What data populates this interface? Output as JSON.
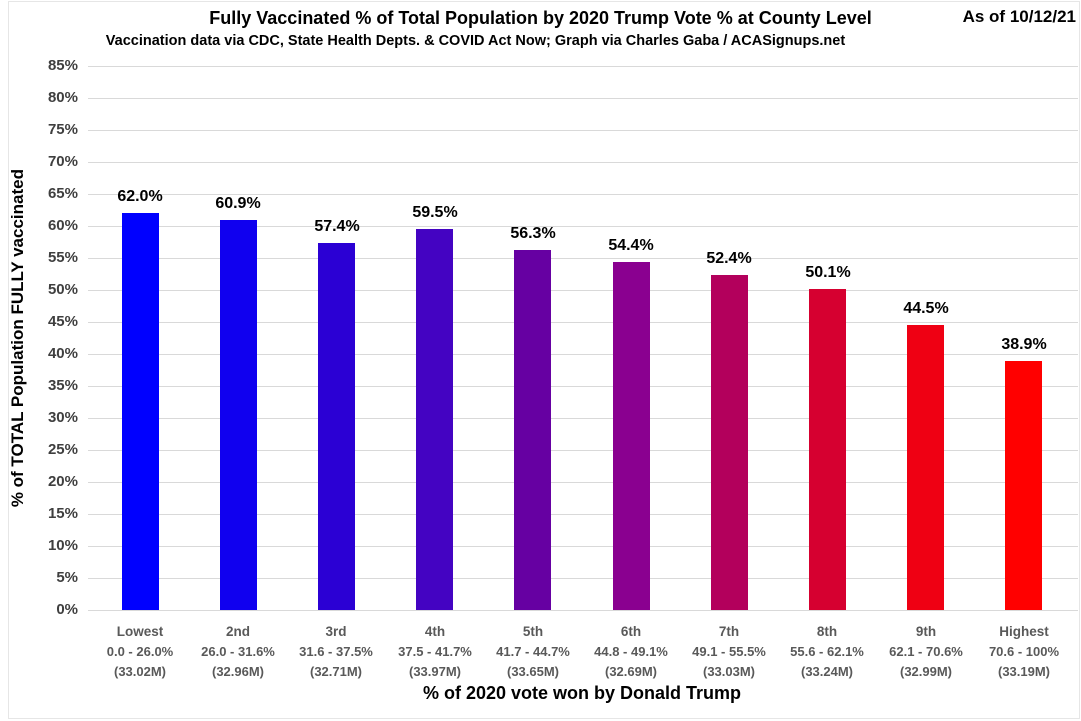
{
  "chart_data": {
    "type": "bar",
    "title": "Fully Vaccinated % of Total Population by 2020 Trump Vote % at County Level",
    "subtitle": "Vaccination data via CDC, State Health Depts. & COVID Act Now; Graph via Charles Gaba / ACASignups.net",
    "annotation": "As of 10/12/21",
    "xlabel": "% of 2020 vote won by Donald Trump",
    "ylabel": "% of TOTAL Population FULLY vaccinated",
    "ylim": [
      0,
      85
    ],
    "ytick_step": 5,
    "ytick_labels": [
      "0%",
      "5%",
      "10%",
      "15%",
      "20%",
      "25%",
      "30%",
      "35%",
      "40%",
      "45%",
      "50%",
      "55%",
      "60%",
      "65%",
      "70%",
      "75%",
      "80%",
      "85%"
    ],
    "grid": true,
    "legend": "none",
    "categories": [
      {
        "tier": "Lowest",
        "range": "0.0 - 26.0%",
        "population": "(33.02M)"
      },
      {
        "tier": "2nd",
        "range": "26.0 - 31.6%",
        "population": "(32.96M)"
      },
      {
        "tier": "3rd",
        "range": "31.6 - 37.5%",
        "population": "(32.71M)"
      },
      {
        "tier": "4th",
        "range": "37.5 - 41.7%",
        "population": "(33.97M)"
      },
      {
        "tier": "5th",
        "range": "41.7 - 44.7%",
        "population": "(33.65M)"
      },
      {
        "tier": "6th",
        "range": "44.8 - 49.1%",
        "population": "(32.69M)"
      },
      {
        "tier": "7th",
        "range": "49.1 - 55.5%",
        "population": "(33.03M)"
      },
      {
        "tier": "8th",
        "range": "55.6 - 62.1%",
        "population": "(33.24M)"
      },
      {
        "tier": "9th",
        "range": "62.1 - 70.6%",
        "population": "(32.99M)"
      },
      {
        "tier": "Highest",
        "range": "70.6 - 100%",
        "population": "(33.19M)"
      }
    ],
    "values": [
      62.0,
      60.9,
      57.4,
      59.5,
      56.3,
      54.4,
      52.4,
      50.1,
      44.5,
      38.9
    ],
    "value_labels": [
      "62.0%",
      "60.9%",
      "57.4%",
      "59.5%",
      "56.3%",
      "54.4%",
      "52.4%",
      "50.1%",
      "44.5%",
      "38.9%"
    ],
    "bar_colors": [
      "#0000FF",
      "#1000EF",
      "#2B00D4",
      "#4403C2",
      "#6600A2",
      "#8A0090",
      "#B3005C",
      "#D60030",
      "#EF0013",
      "#FF0000"
    ]
  },
  "colors": {
    "gridline": "#D9D9D9",
    "y_tick_text": "#3F3F3F",
    "category_text": "#595959",
    "value_label_text": "#000000",
    "title_text": "#000000",
    "background": "#FFFFFF",
    "frame_border": "#E6E6E6"
  }
}
